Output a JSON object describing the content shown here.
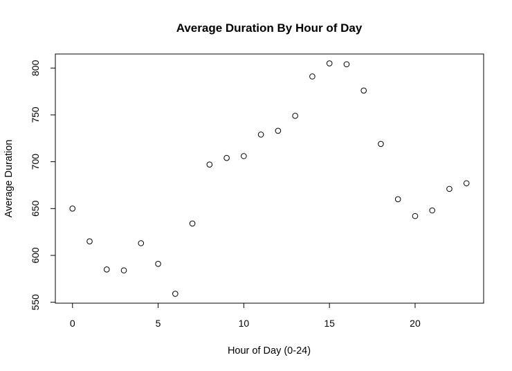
{
  "chart_data": {
    "type": "scatter",
    "title": "Average Duration By Hour of Day",
    "xlabel": "Hour of Day (0-24)",
    "ylabel": "Average Duration",
    "x": [
      0,
      1,
      2,
      3,
      4,
      5,
      6,
      7,
      8,
      9,
      10,
      11,
      12,
      13,
      14,
      15,
      16,
      17,
      18,
      19,
      20,
      21,
      22,
      23
    ],
    "y": [
      650,
      615,
      585,
      584,
      613,
      591,
      559,
      634,
      697,
      704,
      706,
      729,
      733,
      749,
      791,
      805,
      804,
      776,
      719,
      660,
      642,
      648,
      671,
      677
    ],
    "xlim": [
      -1,
      24
    ],
    "ylim": [
      549,
      815
    ],
    "xticks": [
      0,
      5,
      10,
      15,
      20
    ],
    "yticks": [
      550,
      600,
      650,
      700,
      750,
      800
    ],
    "grid": false,
    "legend": "none",
    "marker": "open-circle",
    "colors": {
      "point": "#000000",
      "background": "#ffffff"
    }
  }
}
